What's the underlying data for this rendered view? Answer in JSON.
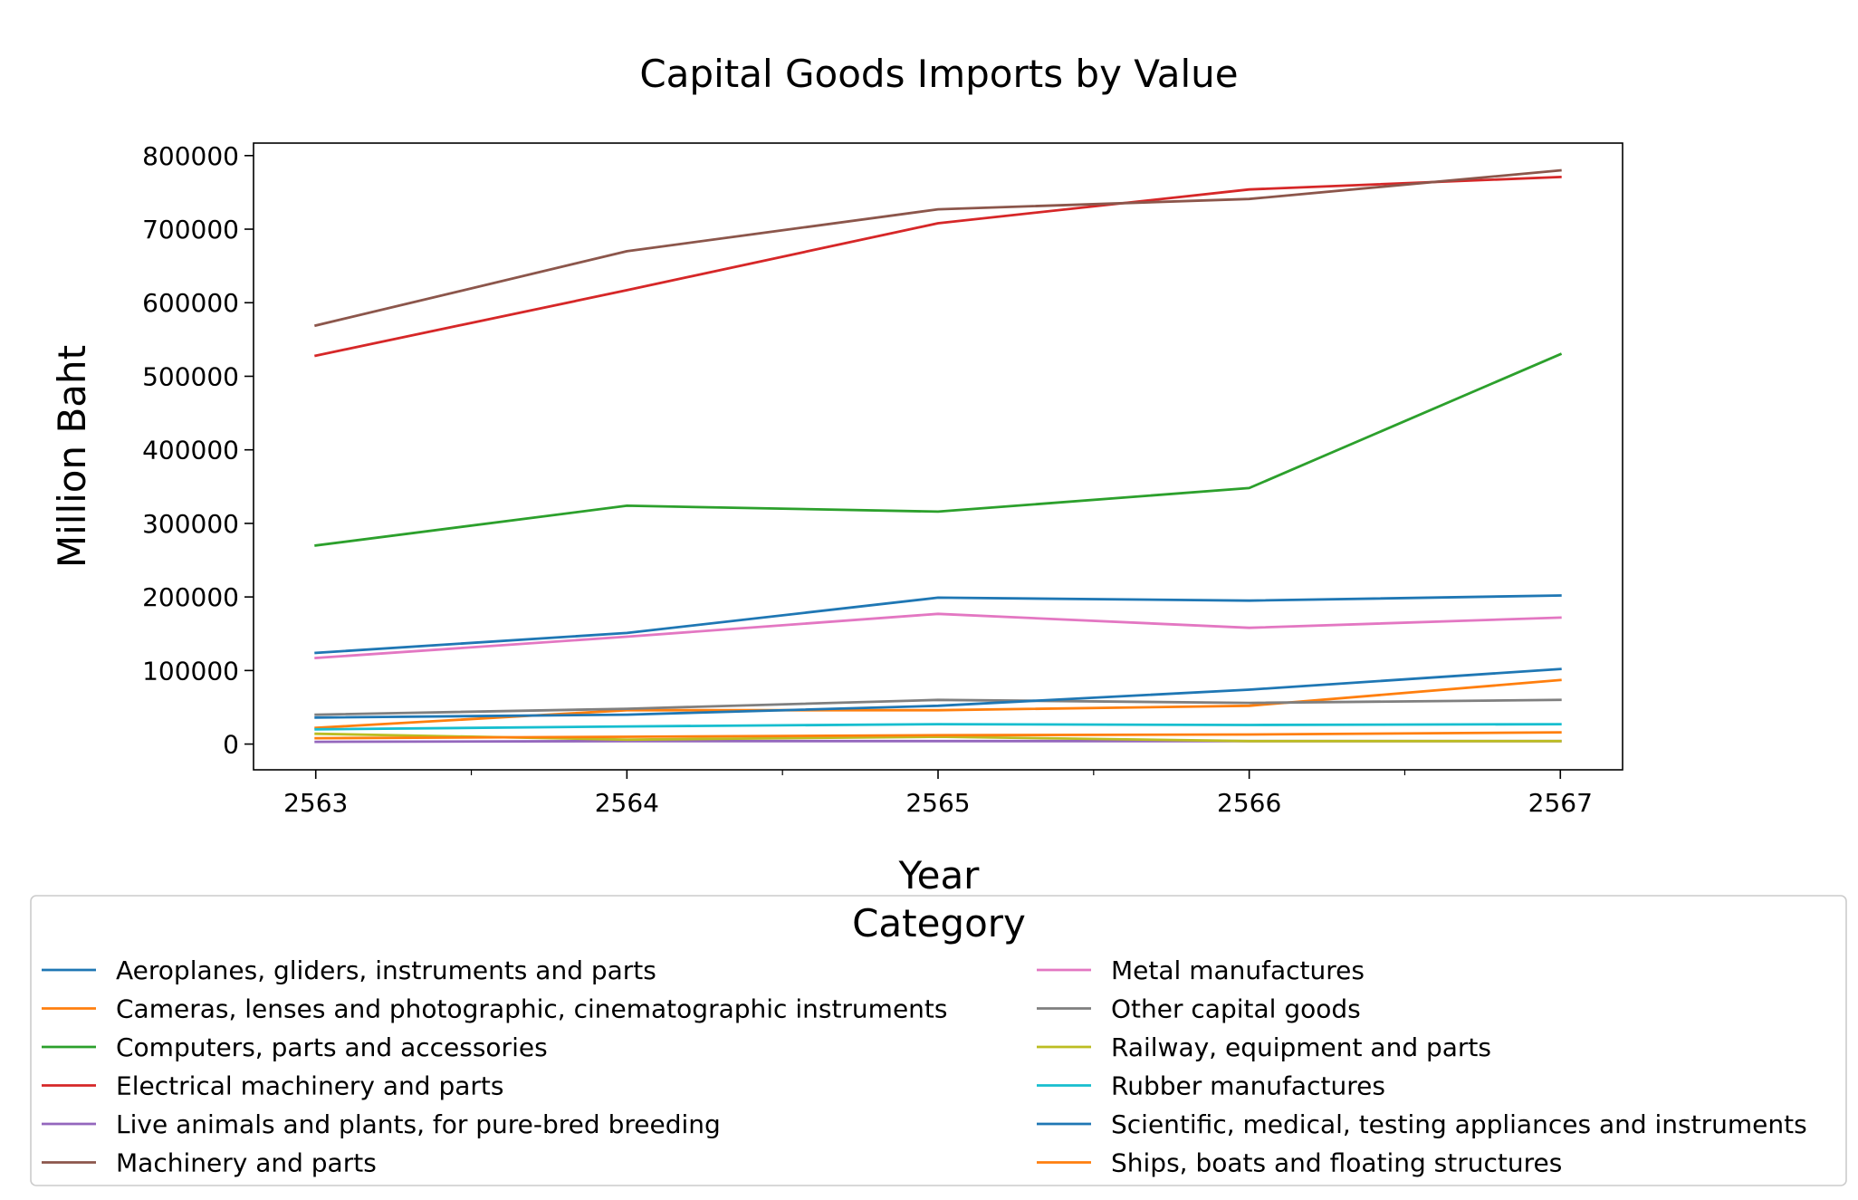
{
  "chart_data": {
    "type": "line",
    "title": "Capital Goods Imports by Value",
    "xlabel": "Year",
    "ylabel": "Million Baht",
    "x": [
      2563,
      2564,
      2565,
      2566,
      2567
    ],
    "x_tick_labels": [
      "2563",
      "2564",
      "2565",
      "2566",
      "2567"
    ],
    "y_ticks": [
      0,
      100000,
      200000,
      300000,
      400000,
      500000,
      600000,
      700000,
      800000
    ],
    "y_tick_labels": [
      "0",
      "100000",
      "200000",
      "300000",
      "400000",
      "500000",
      "600000",
      "700000",
      "800000"
    ],
    "ylim": [
      -35000,
      817000
    ],
    "xlim": [
      2562.8,
      2567.2
    ],
    "grid": false,
    "legend_title": "Category",
    "legend_placement": "below",
    "series": [
      {
        "name": "Aeroplanes, gliders, instruments and parts",
        "color": "#1f77b4",
        "values": [
          124000,
          151000,
          199000,
          195000,
          202000
        ]
      },
      {
        "name": "Cameras, lenses and photographic, cinematographic instruments",
        "color": "#ff7f0e",
        "values": [
          22000,
          46000,
          46000,
          52000,
          87000
        ]
      },
      {
        "name": "Computers, parts and accessories",
        "color": "#2ca02c",
        "values": [
          270000,
          324000,
          316000,
          348000,
          530000
        ]
      },
      {
        "name": "Electrical machinery and parts",
        "color": "#d62728",
        "values": [
          528000,
          617000,
          708000,
          754000,
          771000
        ]
      },
      {
        "name": "Live animals and plants, for pure-bred breeding",
        "color": "#9467bd",
        "values": [
          3000,
          4000,
          4000,
          4000,
          4000
        ]
      },
      {
        "name": "Machinery and parts",
        "color": "#8c564b",
        "values": [
          569000,
          670000,
          727000,
          741000,
          780000
        ]
      },
      {
        "name": "Metal manufactures",
        "color": "#e377c2",
        "values": [
          117000,
          146000,
          177000,
          158000,
          172000
        ]
      },
      {
        "name": "Other capital goods",
        "color": "#7f7f7f",
        "values": [
          40000,
          48000,
          60000,
          56000,
          60000
        ]
      },
      {
        "name": "Railway, equipment and parts",
        "color": "#bcbd22",
        "values": [
          14000,
          6000,
          10000,
          4000,
          4000
        ]
      },
      {
        "name": "Rubber manufactures",
        "color": "#17becf",
        "values": [
          20000,
          24000,
          27000,
          26000,
          27000
        ]
      },
      {
        "name": "Scientific, medical, testing appliances and instruments",
        "color": "#1f77b4",
        "values": [
          36000,
          40000,
          52000,
          74000,
          102000
        ]
      },
      {
        "name": "Ships, boats and floating structures",
        "color": "#ff7f0e",
        "values": [
          8000,
          10000,
          12000,
          13000,
          16000
        ]
      }
    ]
  }
}
